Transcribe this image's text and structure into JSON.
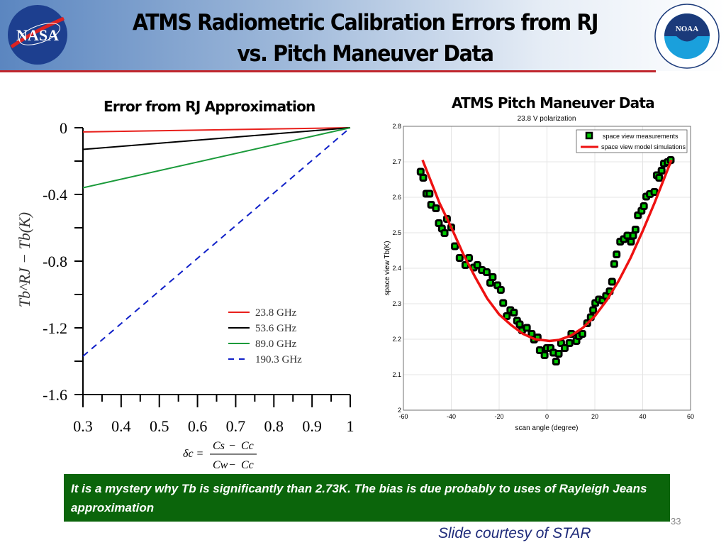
{
  "header": {
    "title_line1": "ATMS Radiometric Calibration Errors from RJ",
    "title_line2": "vs. Pitch Maneuver Data",
    "nasa_logo_text": "NASA",
    "noaa_logo_text": "NOAA"
  },
  "chart_data": [
    {
      "type": "line",
      "title": "Error from RJ Approximation",
      "xlabel": "δc = (Cs − Cc)/(Cw − Cc)",
      "ylabel": "Tb^RJ − Tb(K)",
      "xlim": [
        0.3,
        1
      ],
      "ylim": [
        -1.6,
        0
      ],
      "xticks": [
        "0.3",
        "0.4",
        "0.5",
        "0.6",
        "0.7",
        "0.8",
        "0.9",
        "1"
      ],
      "yticks": [
        "0",
        "-0.4",
        "-0.8",
        "-1.2",
        "-1.6"
      ],
      "legend_position": "bottom-right",
      "series": [
        {
          "name": "23.8 GHz",
          "color": "#e8201c",
          "dash": false,
          "x": [
            0.3,
            1
          ],
          "y": [
            -0.025,
            0
          ]
        },
        {
          "name": "53.6 GHz",
          "color": "#000000",
          "dash": false,
          "x": [
            0.3,
            1
          ],
          "y": [
            -0.13,
            0
          ]
        },
        {
          "name": "89.0 GHz",
          "color": "#1a9a3a",
          "dash": false,
          "x": [
            0.3,
            1
          ],
          "y": [
            -0.36,
            0
          ]
        },
        {
          "name": "190.3 GHz",
          "color": "#1020c8",
          "dash": true,
          "x": [
            0.3,
            1
          ],
          "y": [
            -1.37,
            0
          ]
        }
      ],
      "formula": {
        "lhs": "δc =",
        "num_a": "Cs",
        "num_b": "Cc",
        "den_a": "Cw",
        "den_b": "Cc",
        "minus": "−"
      }
    },
    {
      "type": "scatter",
      "heading": "ATMS Pitch Maneuver Data",
      "title": "23.8 V polarization",
      "xlabel": "scan angle (degree)",
      "ylabel": "space view Tb(K)",
      "xlim": [
        -60,
        60
      ],
      "ylim": [
        2,
        2.8
      ],
      "grid": true,
      "legend_position": "top-right",
      "xticks": [
        "-60",
        "-40",
        "-20",
        "0",
        "20",
        "40",
        "60"
      ],
      "yticks": [
        "2",
        "2.1",
        "2.2",
        "2.3",
        "2.4",
        "2.5",
        "2.6",
        "2.7",
        "2.8"
      ],
      "series": [
        {
          "name": "space view measurements",
          "kind": "scatter",
          "color": "#00cc00",
          "x": [
            -52.8,
            -51.7,
            -50.4,
            -49.1,
            -48.4,
            -46.4,
            -45.2,
            -43.9,
            -42.8,
            -41.8,
            -40,
            -38.5,
            -36.5,
            -34.1,
            -32.6,
            -30.6,
            -29.1,
            -27.2,
            -25.2,
            -23.7,
            -22.7,
            -20.7,
            -19.3,
            -18.3,
            -16.8,
            -15.3,
            -13.8,
            -12.5,
            -11.4,
            -10.4,
            -8.4,
            -6.4,
            -5.4,
            -3.9,
            -3,
            -1,
            0,
            1.5,
            2.7,
            3.8,
            4.9,
            5.9,
            7.4,
            9.4,
            10.2,
            12.3,
            13.3,
            14.8,
            16.8,
            18.3,
            19.3,
            20.2,
            21.7,
            23.2,
            24.7,
            26.2,
            27.2,
            28.1,
            29.1,
            30.6,
            32.1,
            33.6,
            35.1,
            36,
            37,
            38,
            39.5,
            40.5,
            41.5,
            43,
            44.9,
            45.9,
            46.9,
            47.9,
            48.9,
            50.4,
            51.7
          ],
          "y": [
            2.672,
            2.655,
            2.61,
            2.61,
            2.579,
            2.569,
            2.527,
            2.512,
            2.499,
            2.539,
            2.515,
            2.462,
            2.429,
            2.409,
            2.429,
            2.402,
            2.409,
            2.395,
            2.389,
            2.359,
            2.375,
            2.352,
            2.339,
            2.302,
            2.265,
            2.282,
            2.275,
            2.252,
            2.242,
            2.225,
            2.232,
            2.215,
            2.199,
            2.205,
            2.169,
            2.155,
            2.175,
            2.175,
            2.162,
            2.137,
            2.159,
            2.189,
            2.175,
            2.189,
            2.215,
            2.195,
            2.209,
            2.215,
            2.245,
            2.262,
            2.282,
            2.302,
            2.312,
            2.309,
            2.322,
            2.335,
            2.362,
            2.412,
            2.439,
            2.475,
            2.482,
            2.492,
            2.475,
            2.492,
            2.509,
            2.549,
            2.562,
            2.575,
            2.602,
            2.609,
            2.615,
            2.662,
            2.655,
            2.675,
            2.695,
            2.699,
            2.705
          ]
        },
        {
          "name": "space view model simulations",
          "kind": "line",
          "color": "#ee1111",
          "x": [
            -52,
            -45,
            -40,
            -35,
            -30,
            -25,
            -20,
            -15,
            -10,
            -5,
            0,
            1,
            5,
            10,
            15,
            20,
            25,
            30,
            35,
            40,
            45,
            52
          ],
          "y": [
            2.705,
            2.585,
            2.515,
            2.44,
            2.375,
            2.315,
            2.27,
            2.24,
            2.215,
            2.2,
            2.196,
            2.195,
            2.198,
            2.21,
            2.232,
            2.265,
            2.31,
            2.365,
            2.43,
            2.505,
            2.585,
            2.705
          ]
        }
      ]
    }
  ],
  "note": "It is a mystery why Tb is  significantly than 2.73K. The bias is due probably to uses of Rayleigh Jeans approximation",
  "page_number": "33",
  "courtesy": "Slide courtesy of  STAR"
}
